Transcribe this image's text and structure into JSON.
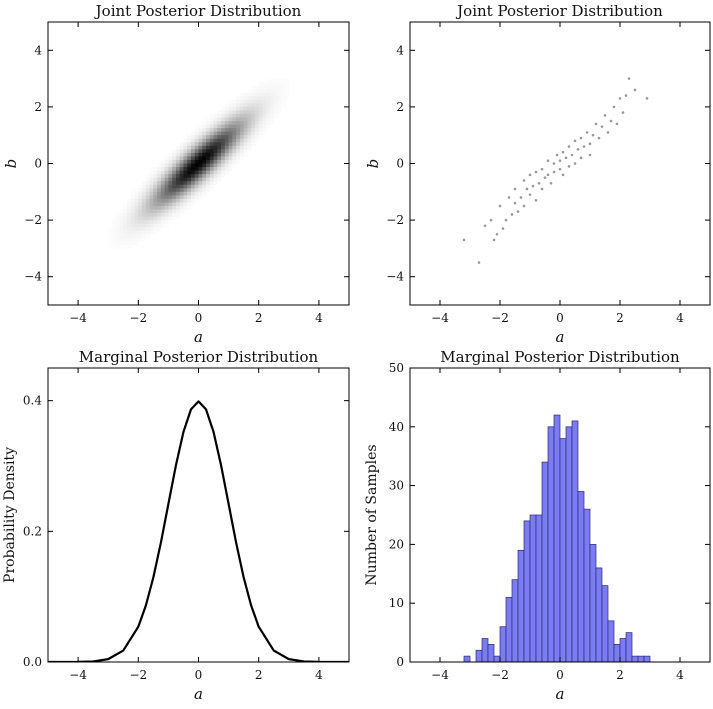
{
  "chart_data": [
    {
      "type": "heatmap",
      "title": "Joint Posterior Distribution",
      "xlabel": "a",
      "ylabel": "b",
      "xlim": [
        -5,
        5
      ],
      "ylim": [
        -5,
        5
      ],
      "xticks": [
        "−4",
        "−2",
        "0",
        "2",
        "4"
      ],
      "yticks": [
        "−4",
        "−2",
        "0",
        "2",
        "4"
      ],
      "density": {
        "mean": [
          0,
          0
        ],
        "std": [
          1,
          1
        ],
        "correlation": 0.9
      },
      "colormap": "white-to-black"
    },
    {
      "type": "scatter",
      "title": "Joint Posterior Distribution",
      "xlabel": "a",
      "ylabel": "b",
      "xlim": [
        -5,
        5
      ],
      "ylim": [
        -5,
        5
      ],
      "xticks": [
        "−4",
        "−2",
        "0",
        "2",
        "4"
      ],
      "yticks": [
        "−4",
        "−2",
        "0",
        "2",
        "4"
      ],
      "point_color": "#777777",
      "points": [
        [
          -3.2,
          -2.7
        ],
        [
          -2.7,
          -3.5
        ],
        [
          -2.5,
          -2.2
        ],
        [
          -2.3,
          -2.0
        ],
        [
          -2.2,
          -2.7
        ],
        [
          -2.1,
          -2.5
        ],
        [
          -2.0,
          -1.5
        ],
        [
          -1.9,
          -2.3
        ],
        [
          -1.8,
          -2.0
        ],
        [
          -1.7,
          -1.2
        ],
        [
          -1.6,
          -1.8
        ],
        [
          -1.5,
          -1.4
        ],
        [
          -1.5,
          -0.9
        ],
        [
          -1.4,
          -1.7
        ],
        [
          -1.3,
          -1.2
        ],
        [
          -1.2,
          -0.6
        ],
        [
          -1.2,
          -1.5
        ],
        [
          -1.1,
          -0.9
        ],
        [
          -1.0,
          -1.1
        ],
        [
          -1.0,
          -0.4
        ],
        [
          -0.9,
          -0.8
        ],
        [
          -0.8,
          -1.3
        ],
        [
          -0.8,
          -0.3
        ],
        [
          -0.7,
          -0.7
        ],
        [
          -0.6,
          -0.2
        ],
        [
          -0.6,
          -0.9
        ],
        [
          -0.5,
          -0.5
        ],
        [
          -0.4,
          0.1
        ],
        [
          -0.4,
          -0.4
        ],
        [
          -0.3,
          -0.7
        ],
        [
          -0.2,
          0.0
        ],
        [
          -0.2,
          -0.3
        ],
        [
          -0.1,
          0.3
        ],
        [
          0.0,
          -0.2
        ],
        [
          0.0,
          0.1
        ],
        [
          0.1,
          0.4
        ],
        [
          0.1,
          -0.4
        ],
        [
          0.2,
          0.2
        ],
        [
          0.3,
          0.6
        ],
        [
          0.3,
          -0.1
        ],
        [
          0.4,
          0.3
        ],
        [
          0.5,
          0.8
        ],
        [
          0.5,
          0.0
        ],
        [
          0.6,
          0.5
        ],
        [
          0.7,
          0.9
        ],
        [
          0.7,
          0.2
        ],
        [
          0.8,
          0.6
        ],
        [
          0.9,
          1.1
        ],
        [
          1.0,
          0.7
        ],
        [
          1.0,
          0.3
        ],
        [
          1.1,
          1.0
        ],
        [
          1.2,
          1.4
        ],
        [
          1.3,
          0.9
        ],
        [
          1.4,
          1.3
        ],
        [
          1.5,
          1.7
        ],
        [
          1.6,
          1.1
        ],
        [
          1.7,
          1.5
        ],
        [
          1.8,
          2.0
        ],
        [
          1.9,
          1.4
        ],
        [
          2.0,
          2.3
        ],
        [
          2.1,
          1.8
        ],
        [
          2.2,
          2.4
        ],
        [
          2.3,
          3.0
        ],
        [
          2.5,
          2.6
        ],
        [
          2.9,
          2.3
        ]
      ]
    },
    {
      "type": "line",
      "title": "Marginal Posterior Distribution",
      "xlabel": "a",
      "ylabel": "Probability Density",
      "xlim": [
        -5,
        5
      ],
      "ylim": [
        0,
        0.45
      ],
      "xticks": [
        "−4",
        "−2",
        "0",
        "2",
        "4"
      ],
      "yticks": [
        "0.0",
        "0.2",
        "0.4"
      ],
      "series": [
        {
          "x": [
            -5,
            -4.5,
            -4,
            -3.5,
            -3,
            -2.5,
            -2,
            -1.75,
            -1.5,
            -1.25,
            -1,
            -0.75,
            -0.5,
            -0.25,
            0,
            0.25,
            0.5,
            0.75,
            1,
            1.25,
            1.5,
            1.75,
            2,
            2.5,
            3,
            3.5,
            4,
            4.5,
            5
          ],
          "y": [
            1.5e-06,
            1.6e-05,
            0.000134,
            0.000873,
            0.00443,
            0.0175,
            0.054,
            0.0863,
            0.1295,
            0.1826,
            0.242,
            0.3011,
            0.3521,
            0.3867,
            0.3989,
            0.3867,
            0.3521,
            0.3011,
            0.242,
            0.1826,
            0.1295,
            0.0863,
            0.054,
            0.0175,
            0.00443,
            0.000873,
            0.000134,
            1.6e-05,
            1.5e-06
          ]
        }
      ]
    },
    {
      "type": "bar",
      "title": "Marginal Posterior Distribution",
      "xlabel": "a",
      "ylabel": "Number of Samples",
      "xlim": [
        -5,
        5
      ],
      "ylim": [
        0,
        50
      ],
      "xticks": [
        "−4",
        "−2",
        "0",
        "2",
        "4"
      ],
      "yticks": [
        "0",
        "10",
        "20",
        "30",
        "40",
        "50"
      ],
      "bar_color": "#7b7bf2",
      "bin_edges": [
        -3.2,
        -3.0,
        -2.8,
        -2.6,
        -2.4,
        -2.2,
        -2.0,
        -1.8,
        -1.6,
        -1.4,
        -1.2,
        -1.0,
        -0.8,
        -0.6,
        -0.4,
        -0.2,
        0.0,
        0.2,
        0.4,
        0.6,
        0.8,
        1.0,
        1.2,
        1.4,
        1.6,
        1.8,
        2.0,
        2.2,
        2.4,
        2.6,
        2.8,
        3.0
      ],
      "values": [
        1,
        0,
        2,
        4,
        3,
        1,
        6,
        11,
        14,
        19,
        24,
        25,
        25,
        34,
        40,
        42,
        38,
        40,
        41,
        29,
        26,
        20,
        16,
        13,
        7,
        3,
        4,
        5,
        1,
        1,
        1
      ]
    }
  ]
}
